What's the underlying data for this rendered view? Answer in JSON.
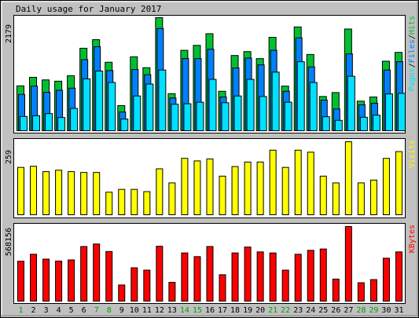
{
  "chart_data": [
    {
      "type": "bar",
      "title": "Daily usage for January 2017",
      "categories": [
        "1",
        "2",
        "3",
        "4",
        "5",
        "6",
        "7",
        "8",
        "9",
        "10",
        "11",
        "12",
        "13",
        "14",
        "15",
        "16",
        "17",
        "18",
        "19",
        "20",
        "21",
        "22",
        "23",
        "24",
        "25",
        "26",
        "27",
        "28",
        "29",
        "30",
        "31"
      ],
      "weekend_days": [
        "1",
        "7",
        "8",
        "14",
        "15",
        "21",
        "22",
        "28",
        "29"
      ],
      "ylim": [
        0,
        2179
      ],
      "y_tick_label": "2179",
      "legend_labels": [
        "Pages",
        "Files",
        "Hits"
      ],
      "series": [
        {
          "name": "Hits",
          "color": "#00C030",
          "values": [
            865,
            1030,
            980,
            955,
            1060,
            1590,
            1755,
            1320,
            485,
            1425,
            1215,
            2179,
            715,
            1550,
            1645,
            1870,
            760,
            1450,
            1525,
            1390,
            1800,
            860,
            2000,
            1470,
            660,
            735,
            1960,
            570,
            650,
            1340,
            1510
          ]
        },
        {
          "name": "Files",
          "color": "#0080FF",
          "values": [
            700,
            860,
            740,
            780,
            820,
            1370,
            1620,
            1160,
            360,
            1180,
            1080,
            1970,
            630,
            1390,
            1390,
            1570,
            650,
            1210,
            1400,
            1270,
            1550,
            760,
            1790,
            1230,
            590,
            420,
            1480,
            500,
            530,
            1170,
            1330
          ]
        },
        {
          "name": "Pages",
          "color": "#00E0FF",
          "values": [
            275,
            290,
            330,
            255,
            430,
            1000,
            1150,
            930,
            225,
            670,
            900,
            1170,
            510,
            520,
            550,
            990,
            540,
            670,
            990,
            660,
            1130,
            550,
            1330,
            930,
            270,
            200,
            1050,
            260,
            300,
            710,
            720
          ]
        }
      ]
    },
    {
      "type": "bar",
      "ylim": [
        0,
        259
      ],
      "y_tick_label": "259",
      "legend_labels": [
        "Visits"
      ],
      "series": [
        {
          "name": "Visits",
          "color": "#FFFF00",
          "values": [
            168,
            172,
            153,
            158,
            153,
            150,
            150,
            80,
            90,
            90,
            82,
            163,
            113,
            200,
            191,
            198,
            137,
            171,
            187,
            187,
            229,
            168,
            229,
            222,
            137,
            113,
            259,
            113,
            123,
            200,
            224
          ]
        }
      ]
    },
    {
      "type": "bar",
      "ylim": [
        0,
        568156
      ],
      "y_tick_label": "568156",
      "legend_labels": [
        "KBytes"
      ],
      "series": [
        {
          "name": "KBytes",
          "color": "#FF0000",
          "values": [
            304000,
            357000,
            320000,
            305000,
            314000,
            416000,
            435000,
            378000,
            123000,
            254000,
            236000,
            418000,
            143000,
            367000,
            339000,
            416000,
            201000,
            367000,
            412000,
            375000,
            367000,
            236000,
            357000,
            387000,
            397000,
            168000,
            568156,
            140000,
            164000,
            327000,
            375000
          ]
        }
      ]
    }
  ]
}
